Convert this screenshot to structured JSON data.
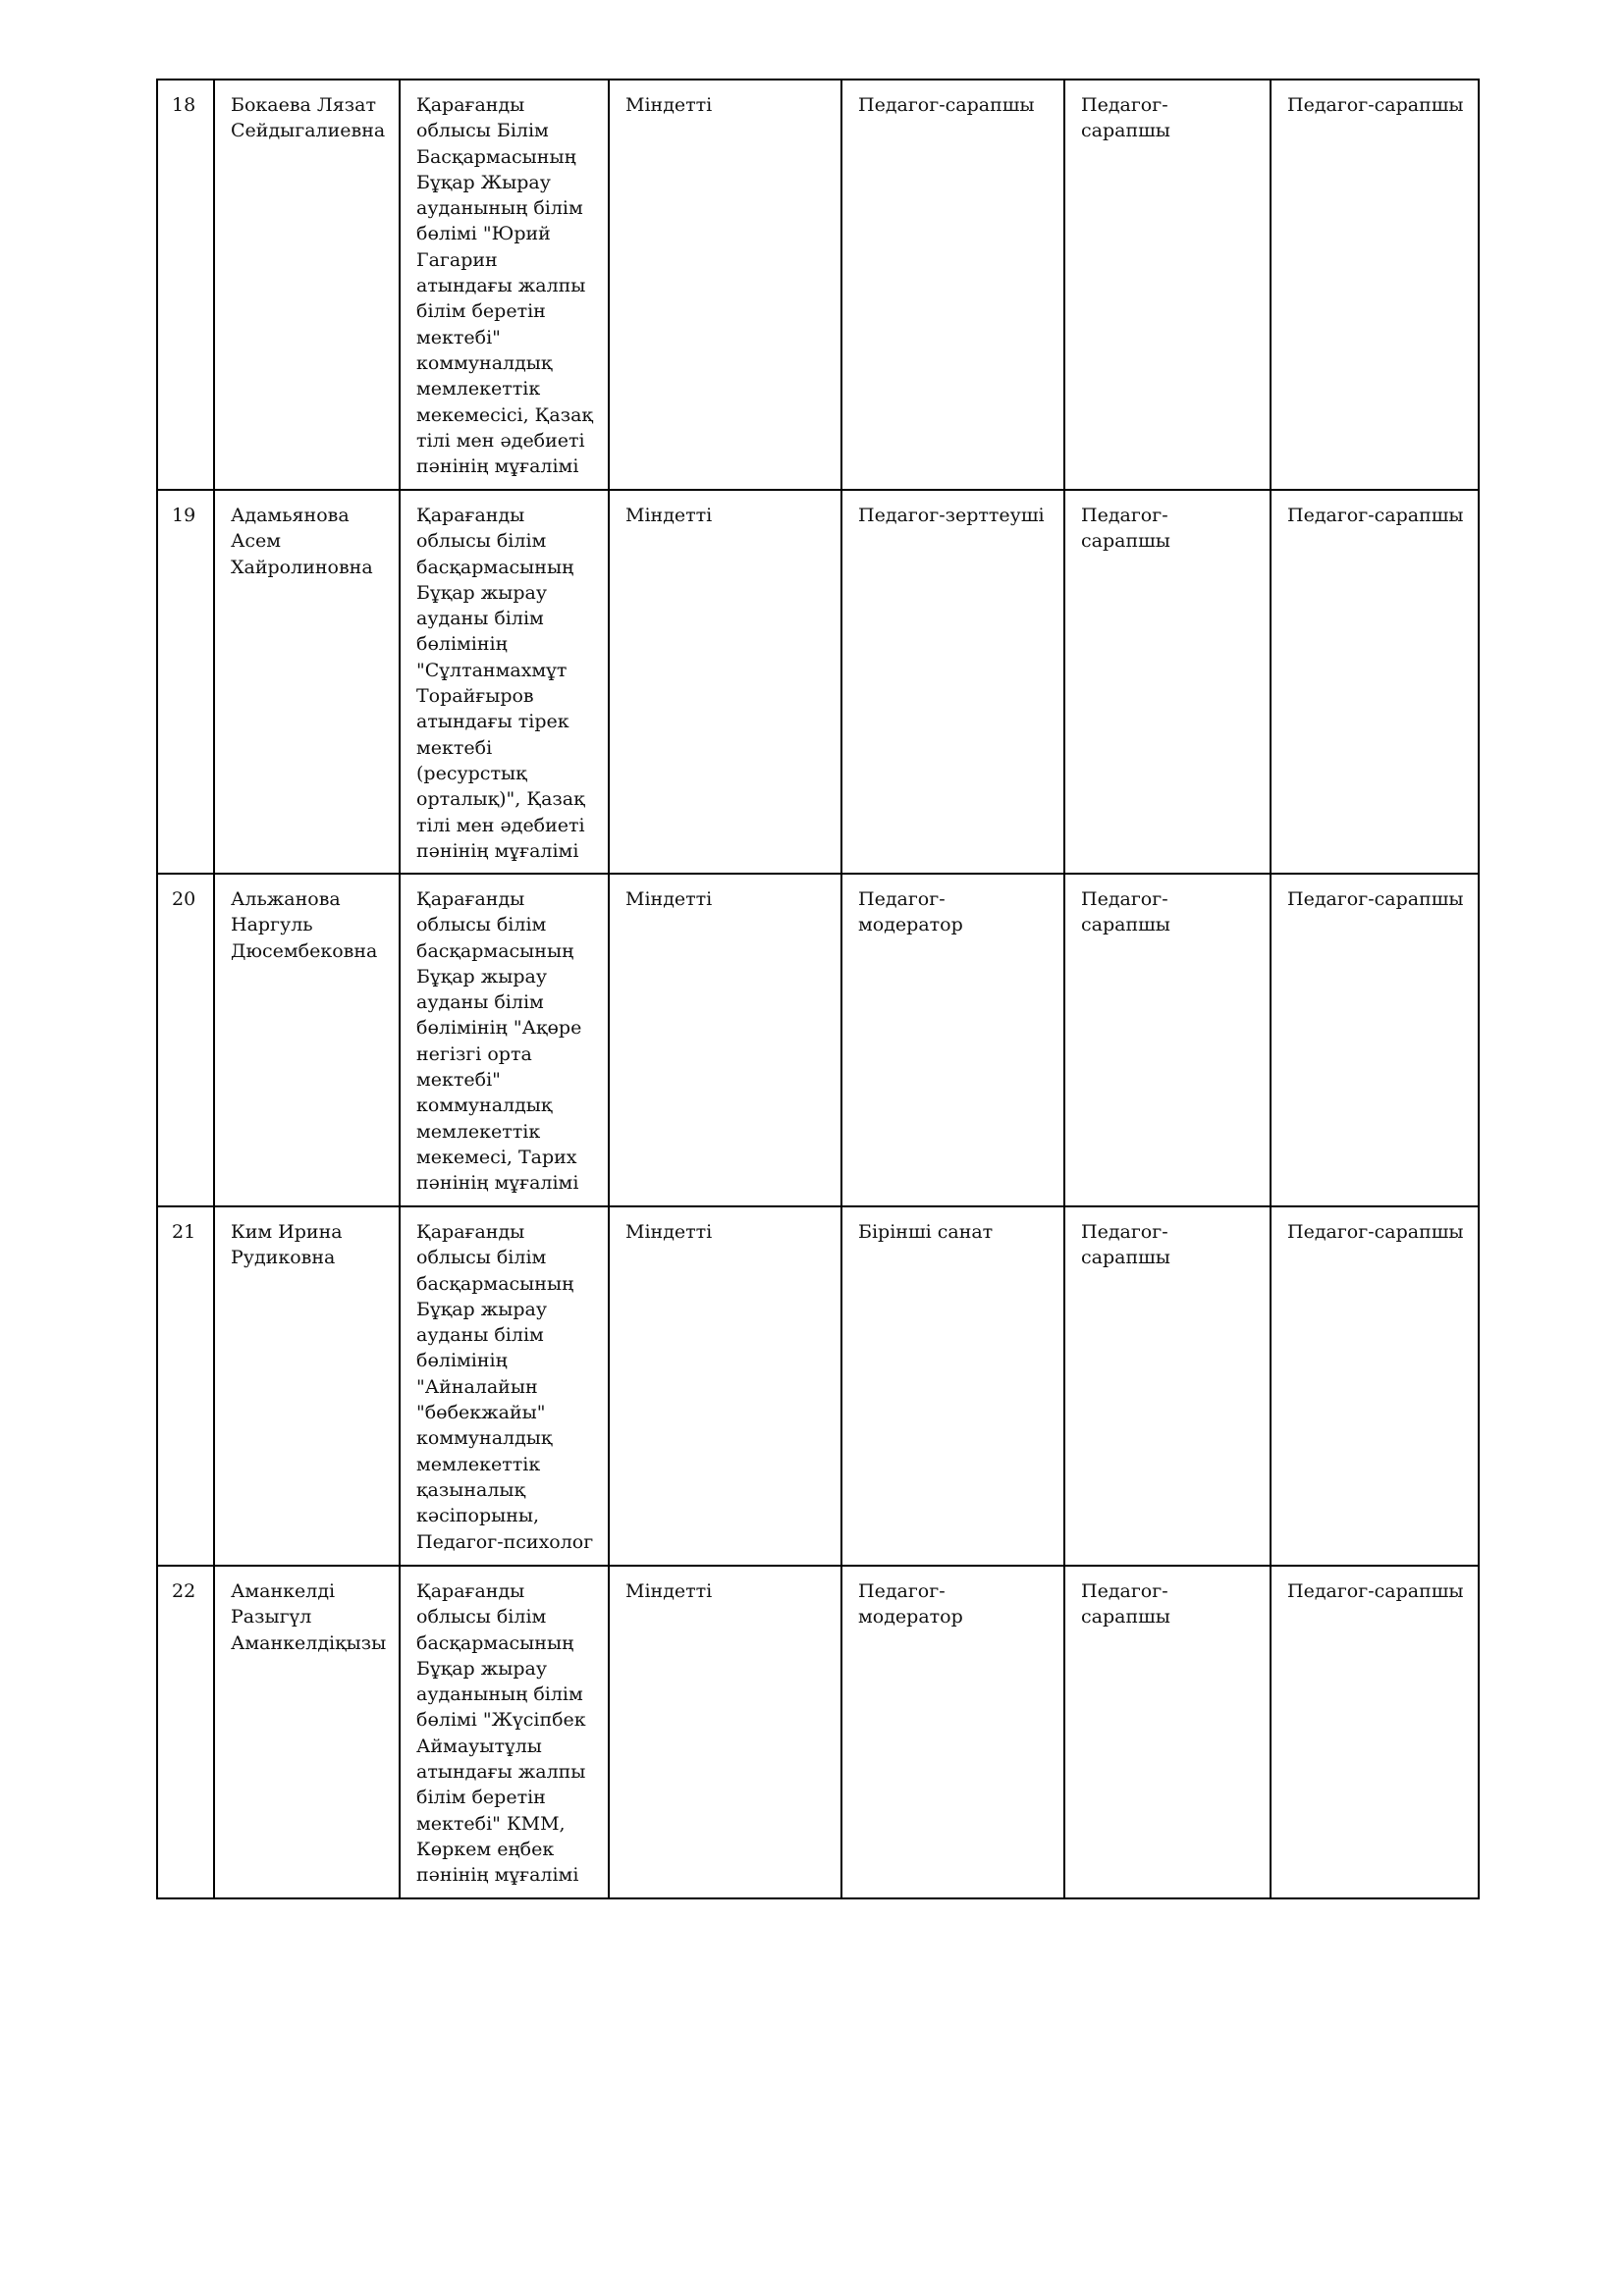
{
  "rows": [
    {
      "no": "18",
      "name": "Бокаева Лязат\nСейдыгалиевна",
      "org": "Қарағанды\nоблысы Білім\nБасқармасының\nБұқар Жырау\nауданының білім\nбөлімі \"Юрий\nГагарин\nатындағы жалпы\nбілім беретін\nмектебі\"\nкоммуналдық\nмемлекеттік\nмекемесісі, Қазақ\nтілі мен әдебиеті\nпәнінің мұғалімі",
      "type": "Міндетті",
      "current": "Педагог-сарапшы",
      "claimed": "Педагог-сарапшы",
      "result": "Педагог-сарапшы"
    },
    {
      "no": "19",
      "name": "Адамьянова\nАсем\nХайролиновна",
      "org": "Қарағанды\nоблысы білім\nбасқармасының\nБұқар жырау\nауданы білім\nбөлімінің\n\"Сұлтанмахмұт\nТорайғыров\nатындағы тірек\nмектебі\n(ресурстық\nорталық)\", Қазақ\nтілі мен әдебиеті\nпәнінің мұғалімі",
      "type": "Міндетті",
      "current": "Педагог-зерттеуші",
      "claimed": "Педагог-сарапшы",
      "result": "Педагог-сарапшы"
    },
    {
      "no": "20",
      "name": "Альжанова\nНаргуль\nДюсембековна",
      "org": "Қарағанды\nоблысы білім\nбасқармасының\nБұқар жырау\nауданы білім\nбөлімінің \"Ақөре\nнегізгі орта\nмектебі\"\nкоммуналдық\nмемлекеттік\nмекемесі, Тарих\nпәнінің мұғалімі",
      "type": "Міндетті",
      "current": "Педагог-модератор",
      "claimed": "Педагог-сарапшы",
      "result": "Педагог-сарапшы"
    },
    {
      "no": "21",
      "name": "Ким Ирина\nРудиковна",
      "org": "Қарағанды\nоблысы білім\nбасқармасының\nБұқар жырау\nауданы білім\nбөлімінің\n\"Айналайын\n\"бөбекжайы\"\nкоммуналдық\nмемлекеттік\nқазыналық\nкәсіпорыны,\nПедагог-психолог",
      "type": "Міндетті",
      "current": "Бірінші санат",
      "claimed": "Педагог-сарапшы",
      "result": "Педагог-сарапшы"
    },
    {
      "no": "22",
      "name": "Аманкелді\nРазыгүл\nАманкелдіқызы",
      "org": "Қарағанды\nоблысы білім\nбасқармасының\nБұқар жырау\nауданының білім\nбөлімі \"Жүсіпбек\nАймауытұлы\nатындағы жалпы\nбілім беретін\nмектебі\" КММ,\nКөркем еңбек\nпәнінің мұғалімі",
      "type": "Міндетті",
      "current": "Педагог-модератор",
      "claimed": "Педагог-сарапшы",
      "result": "Педагог-сарапшы"
    }
  ]
}
